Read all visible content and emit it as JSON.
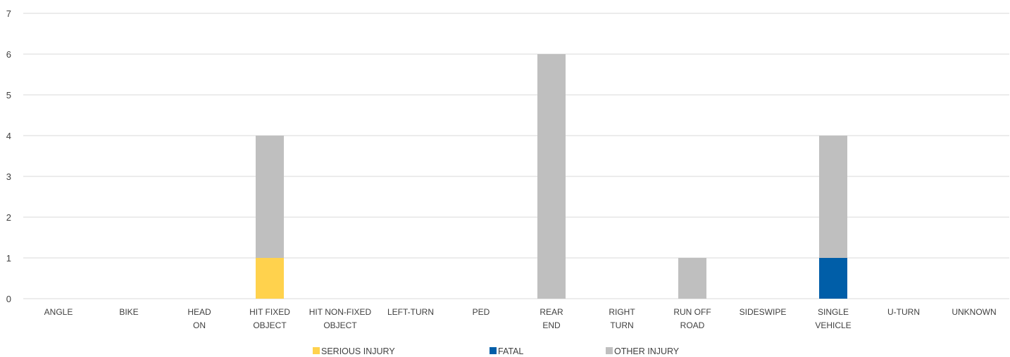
{
  "chart_data": {
    "type": "bar",
    "stacked": true,
    "categories": [
      [
        "ANGLE"
      ],
      [
        "BIKE"
      ],
      [
        "HEAD",
        "ON"
      ],
      [
        "HIT FIXED",
        "OBJECT"
      ],
      [
        "HIT NON-FIXED",
        "OBJECT"
      ],
      [
        "LEFT-TURN"
      ],
      [
        "PED"
      ],
      [
        "REAR",
        "END"
      ],
      [
        "RIGHT",
        "TURN"
      ],
      [
        "RUN OFF",
        "ROAD"
      ],
      [
        "SIDESWIPE"
      ],
      [
        "SINGLE",
        "VEHICLE"
      ],
      [
        "U-TURN"
      ],
      [
        "UNKNOWN"
      ]
    ],
    "series": [
      {
        "name": "SERIOUS INJURY",
        "color": "#FFD24D",
        "values": [
          0,
          0,
          0,
          1,
          0,
          0,
          0,
          0,
          0,
          0,
          0,
          0,
          0,
          0
        ]
      },
      {
        "name": "FATAL",
        "color": "#005EA8",
        "values": [
          0,
          0,
          0,
          0,
          0,
          0,
          0,
          0,
          0,
          0,
          0,
          1,
          0,
          0
        ]
      },
      {
        "name": "OTHER INJURY",
        "color": "#BFBFBF",
        "values": [
          0,
          0,
          0,
          3,
          0,
          0,
          0,
          6,
          0,
          1,
          0,
          3,
          0,
          0
        ]
      }
    ],
    "ylim": [
      0,
      7
    ],
    "yticks": [
      0,
      1,
      2,
      3,
      4,
      5,
      6,
      7
    ],
    "grid": true,
    "gridColor": "#d9d9d9",
    "legend": "bottom"
  }
}
